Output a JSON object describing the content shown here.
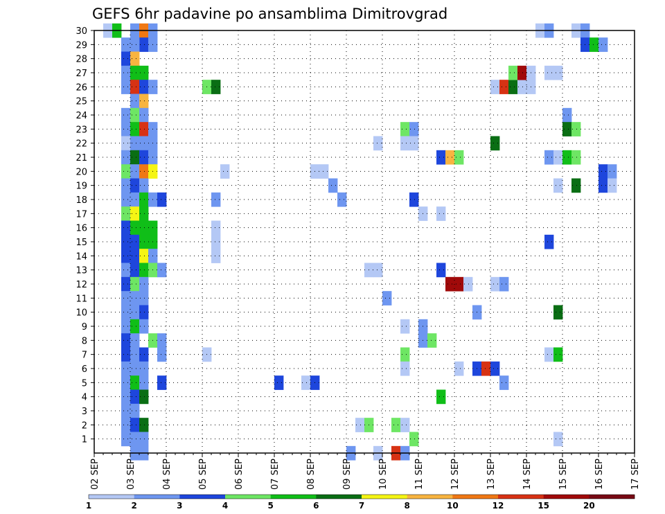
{
  "chart_data": {
    "type": "heatmap",
    "title": "GEFS 6hr padavine po ansamblima Dimitrovgrad",
    "y_min": 0,
    "y_max": 30,
    "y_ticks": [
      1,
      2,
      3,
      4,
      5,
      6,
      7,
      8,
      9,
      10,
      11,
      12,
      13,
      14,
      15,
      16,
      17,
      18,
      19,
      20,
      21,
      22,
      23,
      24,
      25,
      26,
      27,
      28,
      29,
      30
    ],
    "x_ticks": [
      "02 SEP",
      "03 SEP",
      "04 SEP",
      "05 SEP",
      "06 SEP",
      "07 SEP",
      "08 SEP",
      "09 SEP",
      "10 SEP",
      "11 SEP",
      "12 SEP",
      "13 SEP",
      "14 SEP",
      "15 SEP",
      "16 SEP",
      "17 SEP"
    ],
    "steps_per_day": 4,
    "grid": "dotted",
    "colorbar": {
      "colors": [
        "#b4c8f5",
        "#6e96f0",
        "#1e46dc",
        "#6ee664",
        "#10be18",
        "#0a6e14",
        "#f5f514",
        "#f8b440",
        "#f07814",
        "#d73214",
        "#a00a0a",
        "#780a14"
      ],
      "labels": [
        "1",
        "2",
        "3",
        "4",
        "5",
        "6",
        "7",
        "8",
        "10",
        "12",
        "15",
        "20"
      ]
    },
    "cells": [
      [
        1,
        30,
        0
      ],
      [
        2,
        30,
        4
      ],
      [
        4,
        30,
        1
      ],
      [
        5,
        30,
        8
      ],
      [
        6,
        30,
        1
      ],
      [
        5,
        29,
        2
      ],
      [
        3,
        29,
        1
      ],
      [
        4,
        29,
        1
      ],
      [
        6,
        29,
        1
      ],
      [
        3,
        28,
        2
      ],
      [
        4,
        28,
        7
      ],
      [
        3,
        27,
        1
      ],
      [
        4,
        27,
        4
      ],
      [
        5,
        27,
        4
      ],
      [
        3,
        26,
        1
      ],
      [
        4,
        26,
        9
      ],
      [
        5,
        26,
        2
      ],
      [
        6,
        26,
        1
      ],
      [
        4,
        25,
        1
      ],
      [
        5,
        25,
        7
      ],
      [
        3,
        24,
        1
      ],
      [
        4,
        24,
        3
      ],
      [
        5,
        24,
        1
      ],
      [
        3,
        23,
        1
      ],
      [
        4,
        23,
        4
      ],
      [
        5,
        23,
        9
      ],
      [
        6,
        23,
        1
      ],
      [
        3,
        22,
        0
      ],
      [
        4,
        22,
        1
      ],
      [
        5,
        22,
        1
      ],
      [
        6,
        22,
        1
      ],
      [
        3,
        21,
        1
      ],
      [
        4,
        21,
        5
      ],
      [
        5,
        21,
        2
      ],
      [
        6,
        21,
        1
      ],
      [
        3,
        20,
        3
      ],
      [
        4,
        20,
        1
      ],
      [
        5,
        20,
        8
      ],
      [
        6,
        20,
        6
      ],
      [
        3,
        19,
        1
      ],
      [
        4,
        19,
        2
      ],
      [
        5,
        19,
        1
      ],
      [
        3,
        18,
        1
      ],
      [
        4,
        18,
        1
      ],
      [
        5,
        18,
        4
      ],
      [
        6,
        18,
        1
      ],
      [
        3,
        17,
        3
      ],
      [
        4,
        17,
        6
      ],
      [
        5,
        17,
        4
      ],
      [
        3,
        16,
        2
      ],
      [
        4,
        16,
        4
      ],
      [
        5,
        16,
        4
      ],
      [
        6,
        16,
        4
      ],
      [
        3,
        15,
        2
      ],
      [
        4,
        15,
        2
      ],
      [
        5,
        15,
        4
      ],
      [
        6,
        15,
        4
      ],
      [
        3,
        14,
        2
      ],
      [
        4,
        14,
        2
      ],
      [
        5,
        14,
        6
      ],
      [
        6,
        14,
        1
      ],
      [
        3,
        13,
        1
      ],
      [
        4,
        13,
        2
      ],
      [
        5,
        13,
        4
      ],
      [
        6,
        13,
        3
      ],
      [
        7,
        13,
        1
      ],
      [
        3,
        12,
        2
      ],
      [
        4,
        12,
        3
      ],
      [
        5,
        12,
        1
      ],
      [
        3,
        11,
        1
      ],
      [
        4,
        11,
        1
      ],
      [
        5,
        11,
        1
      ],
      [
        3,
        10,
        1
      ],
      [
        4,
        10,
        1
      ],
      [
        5,
        10,
        2
      ],
      [
        3,
        9,
        1
      ],
      [
        4,
        9,
        4
      ],
      [
        5,
        9,
        1
      ],
      [
        3,
        8,
        2
      ],
      [
        4,
        8,
        1
      ],
      [
        6,
        8,
        3
      ],
      [
        7,
        8,
        1
      ],
      [
        3,
        7,
        2
      ],
      [
        4,
        7,
        1
      ],
      [
        5,
        7,
        2
      ],
      [
        3,
        6,
        1
      ],
      [
        4,
        6,
        1
      ],
      [
        5,
        6,
        1
      ],
      [
        3,
        5,
        1
      ],
      [
        4,
        5,
        4
      ],
      [
        5,
        5,
        1
      ],
      [
        3,
        4,
        1
      ],
      [
        4,
        4,
        2
      ],
      [
        5,
        4,
        5
      ],
      [
        3,
        3,
        1
      ],
      [
        4,
        3,
        1
      ],
      [
        3,
        2,
        1
      ],
      [
        4,
        2,
        2
      ],
      [
        5,
        2,
        5
      ],
      [
        3,
        1,
        1
      ],
      [
        4,
        1,
        1
      ],
      [
        5,
        1,
        1
      ],
      [
        4,
        0,
        1
      ],
      [
        5,
        0,
        1
      ],
      [
        7,
        18,
        2
      ],
      [
        7,
        7,
        1
      ],
      [
        7,
        5,
        2
      ],
      [
        12,
        26,
        3
      ],
      [
        13,
        26,
        5
      ],
      [
        14,
        20,
        0
      ],
      [
        13,
        18,
        1
      ],
      [
        13,
        16,
        0
      ],
      [
        13,
        15,
        0
      ],
      [
        13,
        14,
        0
      ],
      [
        12,
        7,
        0
      ],
      [
        20,
        5,
        2
      ],
      [
        23,
        5,
        0
      ],
      [
        24,
        5,
        2
      ],
      [
        24,
        20,
        0
      ],
      [
        25,
        20,
        0
      ],
      [
        26,
        19,
        1
      ],
      [
        27,
        18,
        1
      ],
      [
        28,
        0,
        1
      ],
      [
        29,
        2,
        0
      ],
      [
        30,
        2,
        3
      ],
      [
        31,
        0,
        0
      ],
      [
        30,
        13,
        0
      ],
      [
        31,
        13,
        0
      ],
      [
        32,
        11,
        1
      ],
      [
        31,
        22,
        0
      ],
      [
        34,
        23,
        3
      ],
      [
        35,
        23,
        1
      ],
      [
        34,
        22,
        0
      ],
      [
        35,
        22,
        0
      ],
      [
        35,
        18,
        2
      ],
      [
        34,
        7,
        3
      ],
      [
        34,
        6,
        0
      ],
      [
        34,
        9,
        0
      ],
      [
        33,
        2,
        3
      ],
      [
        34,
        2,
        0
      ],
      [
        35,
        1,
        3
      ],
      [
        33,
        0,
        9
      ],
      [
        34,
        0,
        1
      ],
      [
        36,
        17,
        0
      ],
      [
        38,
        17,
        0
      ],
      [
        36,
        9,
        1
      ],
      [
        36,
        8,
        1
      ],
      [
        37,
        8,
        3
      ],
      [
        38,
        21,
        2
      ],
      [
        39,
        21,
        7
      ],
      [
        40,
        21,
        3
      ],
      [
        38,
        13,
        2
      ],
      [
        38,
        4,
        4
      ],
      [
        39,
        12,
        10
      ],
      [
        40,
        12,
        10
      ],
      [
        41,
        12,
        0
      ],
      [
        40,
        6,
        0
      ],
      [
        42,
        10,
        1
      ],
      [
        42,
        6,
        2
      ],
      [
        43,
        6,
        9
      ],
      [
        44,
        6,
        2
      ],
      [
        44,
        12,
        0
      ],
      [
        45,
        12,
        1
      ],
      [
        45,
        5,
        1
      ],
      [
        44,
        22,
        5
      ],
      [
        44,
        26,
        0
      ],
      [
        45,
        26,
        9
      ],
      [
        46,
        26,
        5
      ],
      [
        47,
        26,
        0
      ],
      [
        48,
        26,
        0
      ],
      [
        46,
        27,
        3
      ],
      [
        47,
        27,
        10
      ],
      [
        48,
        27,
        0
      ],
      [
        50,
        27,
        0
      ],
      [
        51,
        27,
        0
      ],
      [
        49,
        30,
        0
      ],
      [
        50,
        30,
        1
      ],
      [
        50,
        21,
        1
      ],
      [
        51,
        21,
        0
      ],
      [
        52,
        21,
        4
      ],
      [
        53,
        21,
        3
      ],
      [
        50,
        15,
        2
      ],
      [
        51,
        19,
        0
      ],
      [
        50,
        7,
        0
      ],
      [
        51,
        7,
        4
      ],
      [
        51,
        10,
        5
      ],
      [
        51,
        1,
        0
      ],
      [
        52,
        24,
        1
      ],
      [
        52,
        23,
        5
      ],
      [
        53,
        23,
        3
      ],
      [
        53,
        19,
        5
      ],
      [
        53,
        30,
        0
      ],
      [
        54,
        30,
        1
      ],
      [
        54,
        29,
        2
      ],
      [
        55,
        29,
        4
      ],
      [
        56,
        29,
        1
      ],
      [
        56,
        20,
        2
      ],
      [
        57,
        20,
        1
      ],
      [
        56,
        19,
        2
      ],
      [
        57,
        19,
        0
      ]
    ]
  }
}
